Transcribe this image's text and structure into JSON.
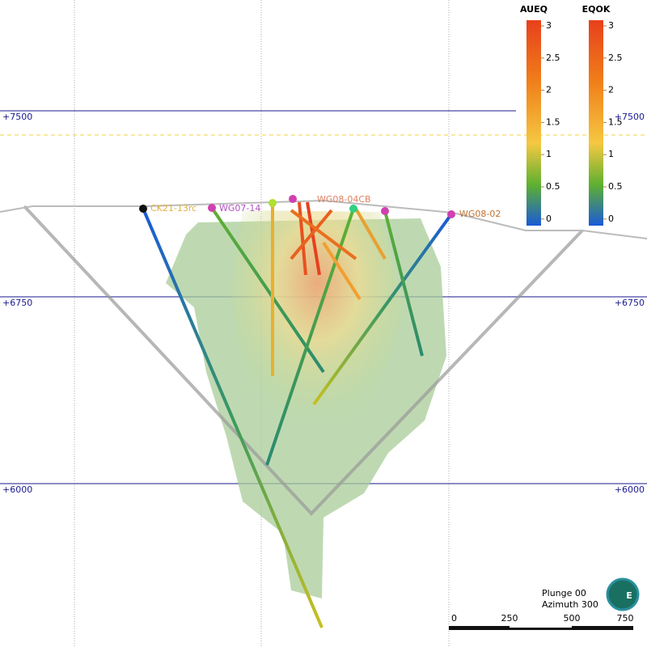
{
  "elevation_labels": [
    "+7500",
    "+6750",
    "+6000"
  ],
  "legends": [
    {
      "title": "AUEQ",
      "ticks": [
        "3",
        "2.5",
        "2",
        "1.5",
        "1",
        "0.5",
        "0"
      ]
    },
    {
      "title": "EQOK",
      "ticks": [
        "3",
        "2.5",
        "2",
        "1.5",
        "1",
        "0.5",
        "0"
      ]
    }
  ],
  "drillholes": [
    "CK21-13rc",
    "WG07-14",
    "WG08-04CB",
    "WG08-02"
  ],
  "view": {
    "plunge": "Plunge 00",
    "azimuth": "Azimuth 300"
  },
  "scale_bar": [
    "0",
    "250",
    "500",
    "750"
  ],
  "compass": "E"
}
